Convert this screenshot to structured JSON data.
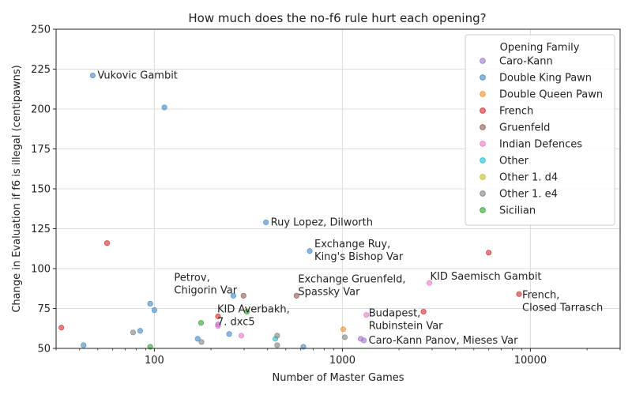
{
  "colors": {
    "Caro-Kann": "#9b72c9",
    "Double King Pawn": "#3d86c3",
    "Double Queen Pawn": "#f28e2b",
    "French": "#d62728",
    "Gruenfeld": "#8c564b",
    "Indian Defences": "#e377c2",
    "Other": "#17becf",
    "Other 1. d4": "#bcbd22",
    "Other 1. e4": "#7f7f7f",
    "Sicilian": "#2ca02c"
  },
  "chart_data": {
    "type": "scatter",
    "title": "How much does the no-f6 rule hurt each opening?",
    "xlabel": "Number of Master Games",
    "ylabel": "Change in Evaluation if f6 is illegal (centipawns)",
    "xscale": "log",
    "xlim": [
      30,
      30000
    ],
    "ylim": [
      50,
      250
    ],
    "xticks": [
      100,
      1000,
      10000
    ],
    "yticks": [
      50,
      75,
      100,
      125,
      150,
      175,
      200,
      225,
      250
    ],
    "grid": true,
    "legend_title": "Opening Family",
    "legend_position": "top-right",
    "series": [
      {
        "name": "Caro-Kann",
        "points": [
          [
            218,
            65
          ],
          [
            1250,
            56
          ],
          [
            1300,
            55
          ]
        ]
      },
      {
        "name": "Double King Pawn",
        "points": [
          [
            47,
            221
          ],
          [
            113,
            201
          ],
          [
            392,
            129
          ],
          [
            670,
            111
          ],
          [
            263,
            83
          ],
          [
            95,
            78
          ],
          [
            100,
            74
          ],
          [
            84,
            61
          ],
          [
            250,
            59
          ],
          [
            170,
            56
          ],
          [
            42,
            52
          ],
          [
            620,
            51
          ]
        ]
      },
      {
        "name": "Double Queen Pawn",
        "points": [
          [
            1010,
            62
          ]
        ]
      },
      {
        "name": "French",
        "points": [
          [
            56,
            116
          ],
          [
            6000,
            110
          ],
          [
            8700,
            84
          ],
          [
            2700,
            73
          ],
          [
            218,
            70
          ],
          [
            32,
            63
          ]
        ]
      },
      {
        "name": "Gruenfeld",
        "points": [
          [
            298,
            83
          ],
          [
            570,
            83
          ]
        ]
      },
      {
        "name": "Indian Defences",
        "points": [
          [
            2900,
            91
          ],
          [
            1340,
            71
          ],
          [
            218,
            64
          ],
          [
            290,
            58
          ]
        ]
      },
      {
        "name": "Other",
        "points": [
          [
            440,
            56
          ]
        ]
      },
      {
        "name": "Other 1. d4",
        "points": []
      },
      {
        "name": "Other 1. e4",
        "points": [
          [
            77,
            60
          ],
          [
            178,
            54
          ],
          [
            450,
            58
          ],
          [
            1030,
            57
          ],
          [
            450,
            52
          ]
        ]
      },
      {
        "name": "Sicilian",
        "points": [
          [
            177,
            66
          ],
          [
            310,
            73
          ],
          [
            95,
            51
          ]
        ]
      }
    ],
    "annotations": [
      {
        "text": "Vukovic Gambit",
        "x": 47,
        "y": 221
      },
      {
        "text": "Ruy Lopez, Dilworth",
        "x": 392,
        "y": 129
      },
      {
        "text": "Exchange Ruy,\nKing's Bishop Var",
        "x": 670,
        "y": 111
      },
      {
        "text": "Petrov,\nChigorin Var",
        "x": 263,
        "y": 83
      },
      {
        "text": "Exchange Gruenfeld,\nSpassky Var",
        "x": 570,
        "y": 83
      },
      {
        "text": "KID Saemisch Gambit",
        "x": 2900,
        "y": 91
      },
      {
        "text": "French,\nClosed Tarrasch",
        "x": 8700,
        "y": 84
      },
      {
        "text": "KID Averbakh,\n7. dxc5",
        "x": 218,
        "y": 70
      },
      {
        "text": "Budapest,\nRubinstein Var",
        "x": 1340,
        "y": 71
      },
      {
        "text": "Caro-Kann Panov, Mieses Var",
        "x": 1300,
        "y": 55
      }
    ]
  }
}
